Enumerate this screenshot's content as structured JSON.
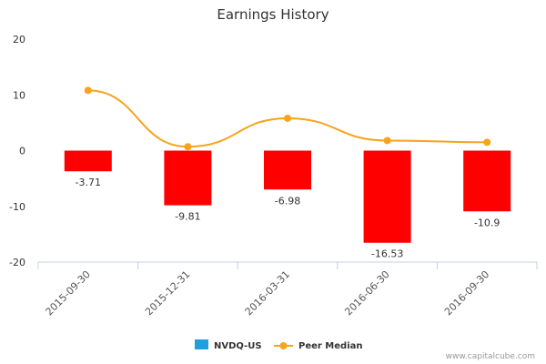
{
  "chart_data": {
    "type": "bar",
    "title": "Earnings History",
    "categories": [
      "2015-09-30",
      "2015-12-31",
      "2016-03-31",
      "2016-06-30",
      "2016-09-30"
    ],
    "series": [
      {
        "name": "NVDQ-US",
        "type": "bar",
        "values": [
          -3.71,
          -9.81,
          -6.98,
          -16.53,
          -10.9
        ],
        "color": "#ff0000",
        "legend_color": "#1f9fde"
      },
      {
        "name": "Peer Median",
        "type": "line",
        "values": [
          10.8,
          0.7,
          5.8,
          1.8,
          1.5
        ],
        "color": "#f7a31c"
      }
    ],
    "data_labels": [
      "-3.71",
      "-9.81",
      "-6.98",
      "-16.53",
      "-10.9"
    ],
    "ylim": [
      -20,
      20
    ],
    "yticks": [
      20,
      10,
      0,
      -10,
      -20
    ],
    "xlabel": "",
    "ylabel": "",
    "grid": false,
    "legend": "bottom-center"
  },
  "credit": "www.capitalcube.com"
}
